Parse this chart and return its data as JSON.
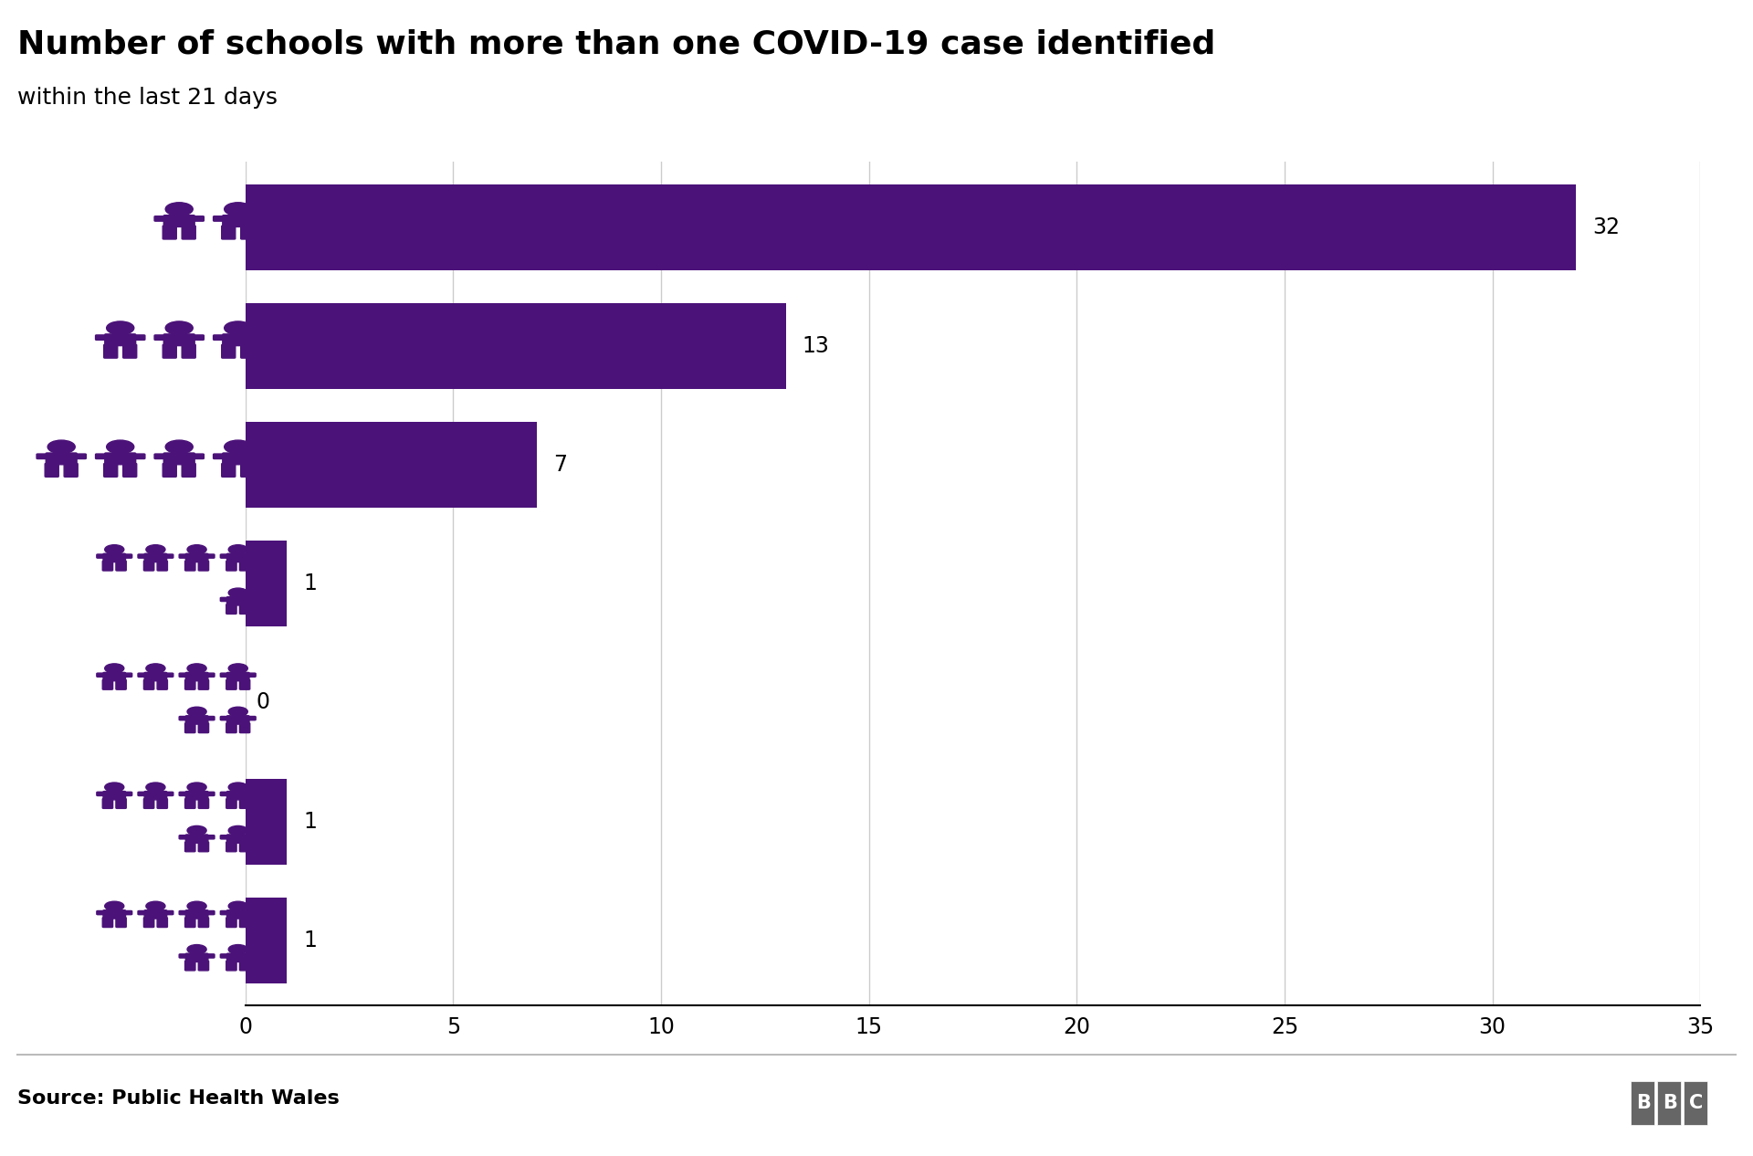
{
  "title": "Number of schools with more than one COVID-19 case identified",
  "subtitle": "within the last 21 days",
  "values": [
    32,
    13,
    7,
    1,
    0,
    1,
    1
  ],
  "bar_color": "#4B1279",
  "bg_color": "#ffffff",
  "xlim": [
    0,
    35
  ],
  "xticks": [
    0,
    5,
    10,
    15,
    20,
    25,
    30,
    35
  ],
  "source_text": "Source: Public Health Wales",
  "title_fontsize": 26,
  "subtitle_fontsize": 18,
  "tick_fontsize": 17,
  "value_fontsize": 17,
  "source_fontsize": 16,
  "grid_color": "#cccccc",
  "icon_color": "#4B1279",
  "icon_layouts": [
    [
      2
    ],
    [
      3
    ],
    [
      4
    ],
    [
      4,
      1
    ],
    [
      4,
      2
    ],
    [
      4,
      2
    ],
    [
      4,
      2
    ]
  ]
}
